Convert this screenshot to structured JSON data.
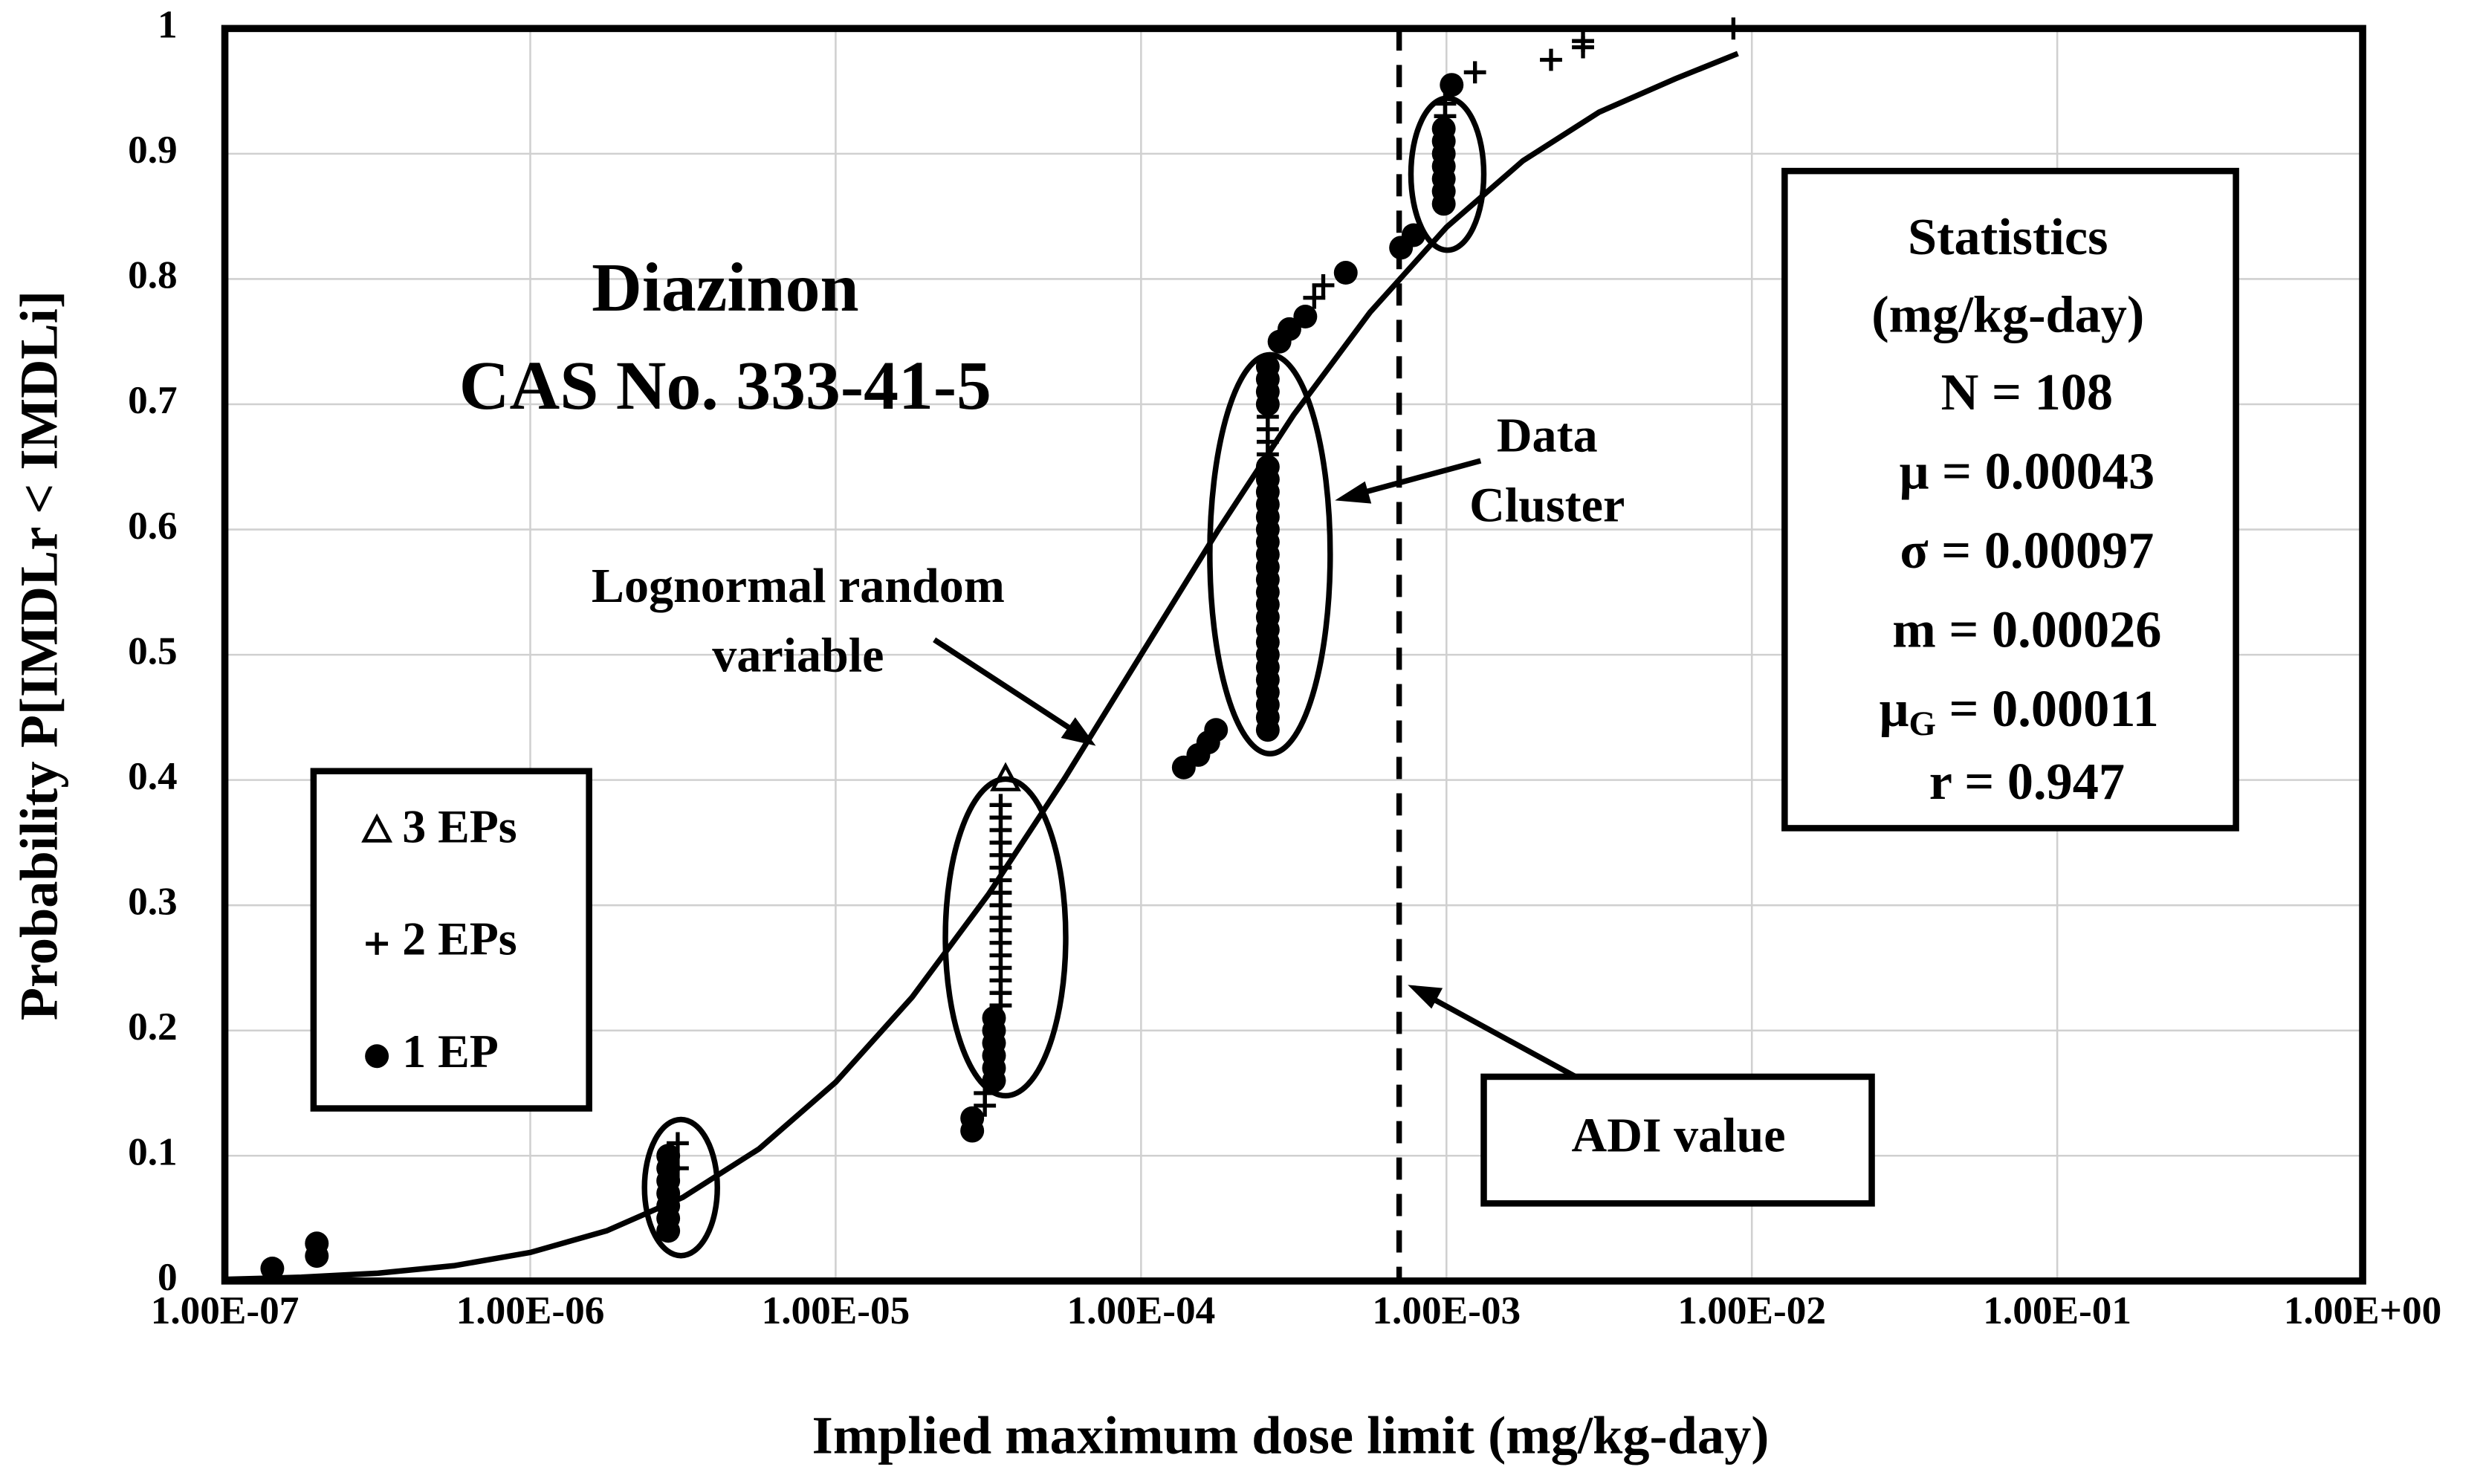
{
  "chart_data": {
    "type": "scatter",
    "x_label": "Implied maximum dose limit (mg/kg-day)",
    "y_label": "Probability P[IMDLr < IMDLi]",
    "xlog": true,
    "grid": true,
    "xlim": [
      1e-07,
      1
    ],
    "ylim": [
      0,
      1
    ],
    "xticks": [
      {
        "value": 1e-07,
        "label": "1.00E-07"
      },
      {
        "value": 1e-06,
        "label": "1.00E-06"
      },
      {
        "value": 1e-05,
        "label": "1.00E-05"
      },
      {
        "value": 0.0001,
        "label": "1.00E-04"
      },
      {
        "value": 0.001,
        "label": "1.00E-03"
      },
      {
        "value": 0.01,
        "label": "1.00E-02"
      },
      {
        "value": 0.1,
        "label": "1.00E-01"
      },
      {
        "value": 1,
        "label": "1.00E+00"
      }
    ],
    "yticks": [
      0,
      0.1,
      0.2,
      0.3,
      0.4,
      0.5,
      0.6,
      0.7,
      0.8,
      0.9,
      1
    ],
    "series": [
      {
        "name": "3 EPs",
        "marker": "triangle",
        "color": "#000000",
        "x": [
          3.6e-05
        ],
        "values": [
          0.4
        ]
      },
      {
        "name": "2 EPs",
        "marker": "plus",
        "color": "#000000",
        "x": [
          3.04e-06,
          3.04e-06,
          3.08e-05,
          3.08e-05,
          3.47e-05,
          3.47e-05,
          3.47e-05,
          3.47e-05,
          3.47e-05,
          3.47e-05,
          3.47e-05,
          3.47e-05,
          3.47e-05,
          3.47e-05,
          3.47e-05,
          3.47e-05,
          3.47e-05,
          3.47e-05,
          3.47e-05,
          3.47e-05,
          3.47e-05,
          0.00026,
          0.00026,
          0.00026,
          0.00026,
          0.000369,
          0.000395,
          0.00099,
          0.00099,
          0.00124,
          0.0022,
          0.0028,
          0.0028,
          0.0087
        ],
        "values": [
          0.09,
          0.11,
          0.14,
          0.15,
          0.22,
          0.23,
          0.24,
          0.25,
          0.26,
          0.27,
          0.28,
          0.29,
          0.3,
          0.31,
          0.32,
          0.33,
          0.34,
          0.35,
          0.36,
          0.37,
          0.38,
          0.66,
          0.67,
          0.68,
          0.69,
          0.785,
          0.795,
          0.93,
          0.94,
          0.965,
          0.975,
          0.985,
          0.99,
          1.0
        ]
      },
      {
        "name": "1 EP",
        "marker": "circle",
        "color": "#000000",
        "x": [
          1.43e-07,
          2e-07,
          2e-07,
          2.83e-06,
          2.83e-06,
          2.83e-06,
          2.83e-06,
          2.83e-06,
          2.83e-06,
          2.83e-06,
          2.8e-05,
          2.8e-05,
          3.3e-05,
          3.3e-05,
          3.3e-05,
          3.3e-05,
          3.3e-05,
          3.3e-05,
          0.000138,
          0.000154,
          0.000166,
          0.000176,
          0.00026,
          0.00026,
          0.00026,
          0.00026,
          0.00026,
          0.00026,
          0.00026,
          0.00026,
          0.00026,
          0.00026,
          0.00026,
          0.00026,
          0.00026,
          0.00026,
          0.00026,
          0.00026,
          0.00026,
          0.00026,
          0.00026,
          0.00026,
          0.00026,
          0.00026,
          0.00026,
          0.00026,
          0.00026,
          0.00026,
          0.000284,
          0.000306,
          0.000345,
          0.000468,
          0.00071,
          0.00078,
          0.00098,
          0.00098,
          0.00098,
          0.00098,
          0.00098,
          0.00098,
          0.00098,
          0.00104
        ],
        "values": [
          0.01,
          0.02,
          0.03,
          0.04,
          0.05,
          0.06,
          0.07,
          0.08,
          0.09,
          0.1,
          0.12,
          0.13,
          0.16,
          0.17,
          0.18,
          0.19,
          0.2,
          0.21,
          0.41,
          0.42,
          0.43,
          0.44,
          0.44,
          0.45,
          0.46,
          0.47,
          0.48,
          0.49,
          0.5,
          0.51,
          0.52,
          0.53,
          0.54,
          0.55,
          0.56,
          0.57,
          0.58,
          0.59,
          0.6,
          0.61,
          0.62,
          0.63,
          0.64,
          0.65,
          0.7,
          0.71,
          0.72,
          0.73,
          0.75,
          0.76,
          0.77,
          0.805,
          0.825,
          0.835,
          0.86,
          0.87,
          0.88,
          0.89,
          0.9,
          0.91,
          0.92,
          0.955
        ]
      }
    ],
    "curve": {
      "x": [
        1e-07,
        1.78e-07,
        3.16e-07,
        5.62e-07,
        1e-06,
        1.78e-06,
        3.16e-06,
        5.62e-06,
        1e-05,
        1.78e-05,
        3.16e-05,
        5.62e-05,
        0.0001,
        0.000178,
        0.000316,
        0.000562,
        0.001,
        0.00178,
        0.00316,
        0.00562,
        0.009
      ],
      "values": [
        0.0013,
        0.003,
        0.0062,
        0.0122,
        0.0228,
        0.0401,
        0.0668,
        0.1056,
        0.1587,
        0.2266,
        0.3085,
        0.4013,
        0.5,
        0.5987,
        0.6915,
        0.7734,
        0.8413,
        0.8944,
        0.9332,
        0.9599,
        0.98
      ]
    },
    "adi_x": 0.0007,
    "annotations": {
      "compound": "Diazinon",
      "cas": "CAS No. 333-41-5",
      "curve_label": [
        "Lognormal random",
        "variable"
      ],
      "cluster_label": [
        "Data",
        "Cluster"
      ],
      "adi_label": "ADI value"
    },
    "statistics": {
      "title": "Statistics",
      "units": "(mg/kg-day)",
      "lines": [
        "N = 108",
        "μ = 0.00043",
        "σ = 0.00097",
        "m = 0.00026"
      ],
      "mu_g": {
        "symbol": "μ",
        "subscript": "G",
        "text": " = 0.00011"
      },
      "r": "r = 0.947"
    }
  }
}
